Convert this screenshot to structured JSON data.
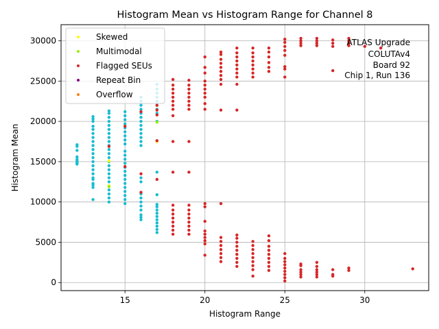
{
  "chart_data": {
    "type": "scatter",
    "title": "Histogram Mean vs Histogram Range for Channel 8",
    "xlabel": "Histogram Range",
    "ylabel": "Histogram Mean",
    "xlim": [
      11.0,
      34.0
    ],
    "ylim": [
      -1000,
      32000
    ],
    "x_ticks": [
      15,
      20,
      25,
      30
    ],
    "y_ticks": [
      0,
      5000,
      10000,
      15000,
      20000,
      25000,
      30000
    ],
    "grid": true,
    "legend_position": "top-left",
    "annotation": [
      "ATLAS Upgrade",
      "COLUTAv4",
      "Board 92",
      "Chip 1, Run 136"
    ],
    "series": [
      {
        "name": "",
        "color": "#17becf",
        "points": [
          [
            12,
            14700
          ],
          [
            12,
            14800
          ],
          [
            12,
            14900
          ],
          [
            12,
            15000
          ],
          [
            12,
            15100
          ],
          [
            12,
            15300
          ],
          [
            12,
            15600
          ],
          [
            12,
            16400
          ],
          [
            12,
            16900
          ],
          [
            12,
            17100
          ],
          [
            13,
            10300
          ],
          [
            13,
            11800
          ],
          [
            13,
            12100
          ],
          [
            13,
            12300
          ],
          [
            13,
            12800
          ],
          [
            13,
            13000
          ],
          [
            13,
            13500
          ],
          [
            13,
            14000
          ],
          [
            13,
            14500
          ],
          [
            13,
            15000
          ],
          [
            13,
            15500
          ],
          [
            13,
            16000
          ],
          [
            13,
            16500
          ],
          [
            13,
            17000
          ],
          [
            13,
            17500
          ],
          [
            13,
            18000
          ],
          [
            13,
            18500
          ],
          [
            13,
            19000
          ],
          [
            13,
            19400
          ],
          [
            13,
            20000
          ],
          [
            13,
            20300
          ],
          [
            13,
            20600
          ],
          [
            14,
            10000
          ],
          [
            14,
            10500
          ],
          [
            14,
            11000
          ],
          [
            14,
            11500
          ],
          [
            14,
            12000
          ],
          [
            14,
            12500
          ],
          [
            14,
            13000
          ],
          [
            14,
            13500
          ],
          [
            14,
            14000
          ],
          [
            14,
            14500
          ],
          [
            14,
            15000
          ],
          [
            14,
            15500
          ],
          [
            14,
            16000
          ],
          [
            14,
            16500
          ],
          [
            14,
            17000
          ],
          [
            14,
            17500
          ],
          [
            14,
            18000
          ],
          [
            14,
            18500
          ],
          [
            14,
            19000
          ],
          [
            14,
            19500
          ],
          [
            14,
            20000
          ],
          [
            14,
            20500
          ],
          [
            14,
            21000
          ],
          [
            14,
            21300
          ],
          [
            15,
            9800
          ],
          [
            15,
            10300
          ],
          [
            15,
            10800
          ],
          [
            15,
            11300
          ],
          [
            15,
            11800
          ],
          [
            15,
            12300
          ],
          [
            15,
            12800
          ],
          [
            15,
            13300
          ],
          [
            15,
            13800
          ],
          [
            15,
            14300
          ],
          [
            15,
            14800
          ],
          [
            15,
            15300
          ],
          [
            15,
            15800
          ],
          [
            15,
            16300
          ],
          [
            15,
            17200
          ],
          [
            15,
            17700
          ],
          [
            15,
            18200
          ],
          [
            15,
            18700
          ],
          [
            15,
            19200
          ],
          [
            15,
            19700
          ],
          [
            15,
            20200
          ],
          [
            15,
            20700
          ],
          [
            15,
            21200
          ],
          [
            16,
            7800
          ],
          [
            16,
            8100
          ],
          [
            16,
            8400
          ],
          [
            16,
            9000
          ],
          [
            16,
            9500
          ],
          [
            16,
            10000
          ],
          [
            16,
            10500
          ],
          [
            16,
            11000
          ],
          [
            16,
            12500
          ],
          [
            16,
            13000
          ],
          [
            16,
            17000
          ],
          [
            16,
            17500
          ],
          [
            16,
            18000
          ],
          [
            16,
            18500
          ],
          [
            16,
            19000
          ],
          [
            16,
            19500
          ],
          [
            16,
            20000
          ],
          [
            16,
            20500
          ],
          [
            16,
            21000
          ],
          [
            16,
            21500
          ],
          [
            16,
            22000
          ],
          [
            16,
            22500
          ],
          [
            16,
            23000
          ],
          [
            17,
            6200
          ],
          [
            17,
            6600
          ],
          [
            17,
            7000
          ],
          [
            17,
            7400
          ],
          [
            17,
            7800
          ],
          [
            17,
            8200
          ],
          [
            17,
            8600
          ],
          [
            17,
            9000
          ],
          [
            17,
            9400
          ],
          [
            17,
            9700
          ],
          [
            17,
            10900
          ],
          [
            17,
            13700
          ],
          [
            17,
            17600
          ],
          [
            17,
            20000
          ],
          [
            17,
            21000
          ],
          [
            17,
            21500
          ],
          [
            17,
            22000
          ],
          [
            17,
            22500
          ],
          [
            17,
            23000
          ],
          [
            17,
            23500
          ],
          [
            17,
            24000
          ],
          [
            17,
            24600
          ]
        ]
      },
      {
        "name": "Skewed",
        "color": "#ffff00",
        "points": [
          [
            14,
            12000
          ],
          [
            14,
            15100
          ],
          [
            17,
            17500
          ]
        ]
      },
      {
        "name": "Multimodal",
        "color": "#9aee00",
        "points": [
          [
            14,
            11900
          ],
          [
            17,
            19900
          ]
        ]
      },
      {
        "name": "Flagged SEUs",
        "color": "#d62728",
        "points": [
          [
            14,
            16900
          ],
          [
            15,
            14400
          ],
          [
            15,
            19400
          ],
          [
            16,
            11200
          ],
          [
            16,
            13500
          ],
          [
            16,
            21200
          ],
          [
            17,
            12800
          ],
          [
            17,
            17600
          ],
          [
            17,
            20800
          ],
          [
            17,
            21400
          ],
          [
            17,
            22000
          ],
          [
            18,
            6000
          ],
          [
            18,
            6500
          ],
          [
            18,
            7000
          ],
          [
            18,
            7500
          ],
          [
            18,
            8000
          ],
          [
            18,
            8500
          ],
          [
            18,
            9000
          ],
          [
            18,
            9600
          ],
          [
            18,
            13700
          ],
          [
            18,
            17500
          ],
          [
            18,
            20700
          ],
          [
            18,
            21500
          ],
          [
            18,
            22000
          ],
          [
            18,
            22500
          ],
          [
            18,
            23000
          ],
          [
            18,
            23500
          ],
          [
            18,
            24000
          ],
          [
            18,
            24500
          ],
          [
            18,
            25200
          ],
          [
            19,
            6000
          ],
          [
            19,
            6500
          ],
          [
            19,
            7000
          ],
          [
            19,
            7500
          ],
          [
            19,
            8000
          ],
          [
            19,
            8500
          ],
          [
            19,
            9000
          ],
          [
            19,
            9600
          ],
          [
            19,
            13700
          ],
          [
            19,
            17500
          ],
          [
            19,
            21500
          ],
          [
            19,
            22000
          ],
          [
            19,
            22500
          ],
          [
            19,
            23000
          ],
          [
            19,
            23500
          ],
          [
            19,
            24000
          ],
          [
            19,
            24500
          ],
          [
            19,
            25100
          ],
          [
            20,
            3400
          ],
          [
            20,
            4800
          ],
          [
            20,
            5200
          ],
          [
            20,
            5600
          ],
          [
            20,
            6000
          ],
          [
            20,
            6400
          ],
          [
            20,
            7600
          ],
          [
            20,
            9400
          ],
          [
            20,
            9800
          ],
          [
            20,
            21500
          ],
          [
            20,
            22200
          ],
          [
            20,
            23000
          ],
          [
            20,
            23500
          ],
          [
            20,
            24000
          ],
          [
            20,
            24500
          ],
          [
            20,
            25000
          ],
          [
            20,
            26000
          ],
          [
            20,
            26700
          ],
          [
            20,
            28000
          ],
          [
            21,
            2600
          ],
          [
            21,
            3100
          ],
          [
            21,
            3600
          ],
          [
            21,
            4100
          ],
          [
            21,
            4600
          ],
          [
            21,
            5100
          ],
          [
            21,
            5600
          ],
          [
            21,
            9800
          ],
          [
            21,
            21400
          ],
          [
            21,
            24600
          ],
          [
            21,
            25200
          ],
          [
            21,
            25700
          ],
          [
            21,
            26200
          ],
          [
            21,
            26700
          ],
          [
            21,
            27200
          ],
          [
            21,
            27700
          ],
          [
            21,
            28300
          ],
          [
            21,
            28600
          ],
          [
            22,
            2000
          ],
          [
            22,
            2500
          ],
          [
            22,
            3000
          ],
          [
            22,
            3500
          ],
          [
            22,
            4000
          ],
          [
            22,
            4500
          ],
          [
            22,
            5000
          ],
          [
            22,
            5500
          ],
          [
            22,
            5900
          ],
          [
            22,
            21400
          ],
          [
            22,
            24600
          ],
          [
            22,
            25500
          ],
          [
            22,
            26000
          ],
          [
            22,
            26500
          ],
          [
            22,
            27000
          ],
          [
            22,
            27500
          ],
          [
            22,
            28000
          ],
          [
            22,
            28500
          ],
          [
            22,
            29100
          ],
          [
            23,
            800
          ],
          [
            23,
            1600
          ],
          [
            23,
            2100
          ],
          [
            23,
            2600
          ],
          [
            23,
            3100
          ],
          [
            23,
            3600
          ],
          [
            23,
            4100
          ],
          [
            23,
            4600
          ],
          [
            23,
            5100
          ],
          [
            23,
            25500
          ],
          [
            23,
            26000
          ],
          [
            23,
            26500
          ],
          [
            23,
            27000
          ],
          [
            23,
            27500
          ],
          [
            23,
            28000
          ],
          [
            23,
            28500
          ],
          [
            23,
            29100
          ],
          [
            24,
            1500
          ],
          [
            24,
            2000
          ],
          [
            24,
            2500
          ],
          [
            24,
            3000
          ],
          [
            24,
            3500
          ],
          [
            24,
            4000
          ],
          [
            24,
            4500
          ],
          [
            24,
            5200
          ],
          [
            24,
            5800
          ],
          [
            24,
            26200
          ],
          [
            24,
            26700
          ],
          [
            24,
            27300
          ],
          [
            24,
            28000
          ],
          [
            24,
            28600
          ],
          [
            24,
            29100
          ],
          [
            25,
            200
          ],
          [
            25,
            600
          ],
          [
            25,
            1000
          ],
          [
            25,
            1400
          ],
          [
            25,
            1800
          ],
          [
            25,
            2200
          ],
          [
            25,
            2600
          ],
          [
            25,
            3000
          ],
          [
            25,
            3600
          ],
          [
            25,
            25500
          ],
          [
            25,
            26500
          ],
          [
            25,
            26800
          ],
          [
            25,
            28200
          ],
          [
            25,
            28800
          ],
          [
            25,
            29300
          ],
          [
            25,
            29800
          ],
          [
            25,
            30200
          ],
          [
            26,
            700
          ],
          [
            26,
            1000
          ],
          [
            26,
            1300
          ],
          [
            26,
            1600
          ],
          [
            26,
            2100
          ],
          [
            26,
            2300
          ],
          [
            26,
            29400
          ],
          [
            26,
            29700
          ],
          [
            26,
            30000
          ],
          [
            26,
            30300
          ],
          [
            27,
            700
          ],
          [
            27,
            1000
          ],
          [
            27,
            1300
          ],
          [
            27,
            1600
          ],
          [
            27,
            2000
          ],
          [
            27,
            2500
          ],
          [
            27,
            29400
          ],
          [
            27,
            29700
          ],
          [
            27,
            30000
          ],
          [
            27,
            30300
          ],
          [
            28,
            800
          ],
          [
            28,
            1000
          ],
          [
            28,
            1600
          ],
          [
            28,
            26300
          ],
          [
            28,
            29300
          ],
          [
            28,
            29700
          ],
          [
            28,
            30100
          ],
          [
            29,
            1500
          ],
          [
            29,
            1800
          ],
          [
            29,
            29400
          ],
          [
            29,
            29700
          ],
          [
            29,
            30000
          ],
          [
            29,
            30300
          ],
          [
            30,
            29300
          ],
          [
            31,
            29100
          ],
          [
            33,
            1700
          ]
        ]
      },
      {
        "name": "Repeat Bin",
        "color": "#800080",
        "points": []
      },
      {
        "name": "Overflow",
        "color": "#ff7f0e",
        "points": []
      }
    ]
  }
}
